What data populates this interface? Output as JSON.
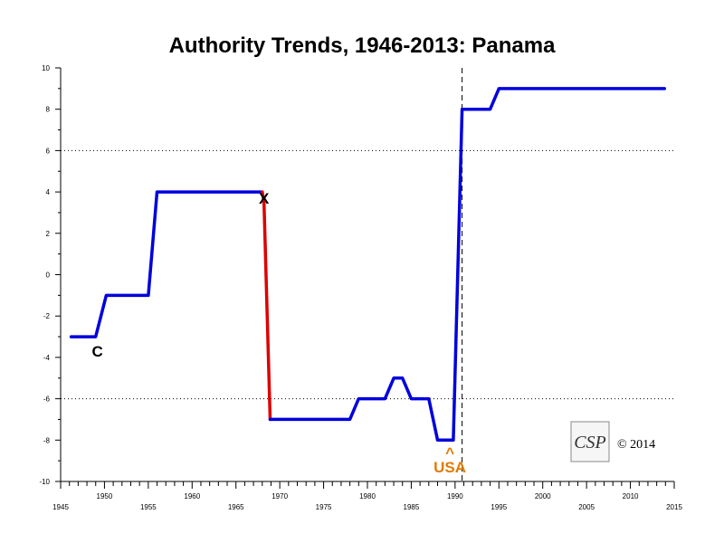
{
  "chart_data": {
    "type": "line",
    "title": "Authority Trends, 1946-2013: Panama",
    "xlim": [
      1945,
      2015
    ],
    "ylim": [
      -10,
      10
    ],
    "x_major_ticks": [
      1945,
      1950,
      1955,
      1960,
      1965,
      1970,
      1975,
      1980,
      1985,
      1990,
      1995,
      2000,
      2005,
      2010,
      2015
    ],
    "y_major_ticks": [
      -10,
      -8,
      -6,
      -4,
      -2,
      0,
      2,
      4,
      6,
      8,
      10
    ],
    "reference_lines": [
      -6,
      6
    ],
    "event_line_x": 1990.8,
    "series": [
      {
        "color": "#0000dd",
        "points": [
          [
            1946.2,
            -3
          ],
          [
            1949.0,
            -3
          ],
          [
            1950.2,
            -1
          ],
          [
            1955.0,
            -1
          ],
          [
            1956.0,
            4
          ],
          [
            1968.0,
            4
          ]
        ]
      },
      {
        "color": "#dd0000",
        "points": [
          [
            1968.0,
            4
          ],
          [
            1968.2,
            3.5
          ],
          [
            1968.9,
            -7
          ]
        ]
      },
      {
        "color": "#0000dd",
        "points": [
          [
            1968.9,
            -7
          ],
          [
            1978.0,
            -7
          ],
          [
            1979.0,
            -6
          ],
          [
            1982.0,
            -6
          ],
          [
            1983.0,
            -5
          ],
          [
            1984.0,
            -5
          ],
          [
            1985.0,
            -6
          ],
          [
            1987.0,
            -6
          ],
          [
            1988.0,
            -8
          ],
          [
            1989.8,
            -8
          ],
          [
            1990.8,
            8
          ],
          [
            1994.0,
            8
          ],
          [
            1995.0,
            9
          ],
          [
            2013.9,
            9
          ]
        ]
      }
    ],
    "annotations": [
      {
        "text": "C",
        "x": 1949.2,
        "y": -3.7,
        "color": "#000000"
      },
      {
        "text": "X",
        "x": 1968.2,
        "y": 3.7,
        "color": "#000000"
      },
      {
        "text": "^",
        "x": 1989.4,
        "y": -8.6,
        "color": "#e07b00"
      },
      {
        "text": "USA",
        "x": 1989.4,
        "y": -9.3,
        "color": "#e07b00"
      }
    ]
  },
  "watermark": {
    "logo_text": "CSP",
    "copyright": "© 2014"
  }
}
